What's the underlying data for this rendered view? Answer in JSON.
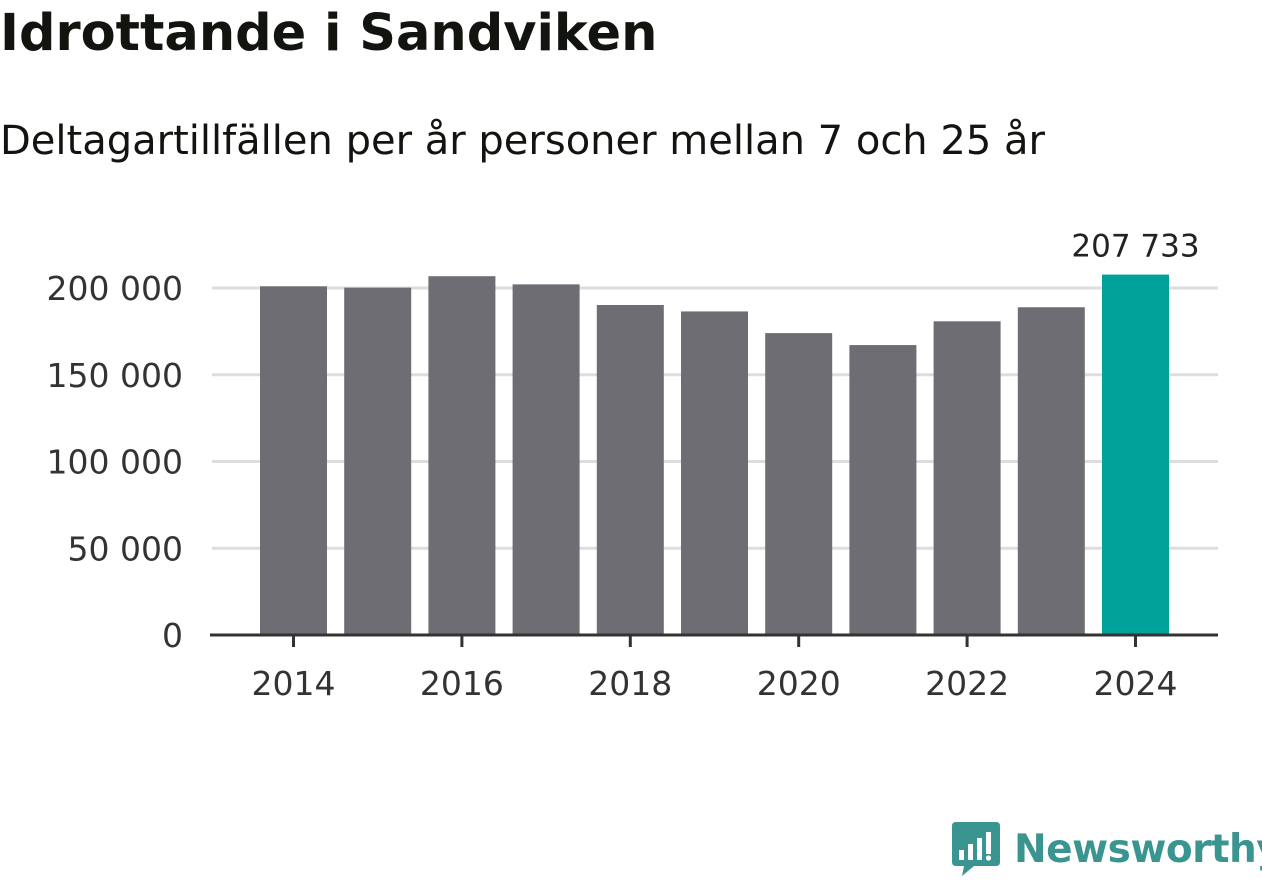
{
  "header": {
    "title": "Idrottande i Sandviken",
    "subtitle": "Deltagartillfällen per år personer mellan 7 och 25 år"
  },
  "brand": {
    "name": "Newsworthy",
    "color": "#3a9590"
  },
  "colors": {
    "bar": "#6e6d73",
    "highlight": "#00a29a",
    "grid": "#dddddd",
    "axis": "#333333",
    "text": "#333333"
  },
  "chart_data": {
    "type": "bar",
    "title": "Idrottande i Sandviken",
    "subtitle": "Deltagartillfällen per år personer mellan 7 och 25 år",
    "xlabel": "",
    "ylabel": "",
    "categories": [
      "2014",
      "2015",
      "2016",
      "2017",
      "2018",
      "2019",
      "2020",
      "2021",
      "2022",
      "2023",
      "2024"
    ],
    "values": [
      201000,
      200200,
      206800,
      202100,
      190200,
      186500,
      174000,
      167100,
      180800,
      188900,
      207733
    ],
    "highlight_index": 10,
    "value_labels": [
      {
        "index": 10,
        "text": "207 733"
      }
    ],
    "x_tick_labels": [
      {
        "index": 0,
        "text": "2014"
      },
      {
        "index": 2,
        "text": "2016"
      },
      {
        "index": 4,
        "text": "2018"
      },
      {
        "index": 6,
        "text": "2020"
      },
      {
        "index": 8,
        "text": "2022"
      },
      {
        "index": 10,
        "text": "2024"
      }
    ],
    "y_ticks": [
      {
        "value": 0,
        "label": "0"
      },
      {
        "value": 50000,
        "label": "50 000"
      },
      {
        "value": 100000,
        "label": "100 000"
      },
      {
        "value": 150000,
        "label": "150 000"
      },
      {
        "value": 200000,
        "label": "200 000"
      }
    ],
    "ylim": [
      0,
      200000
    ],
    "grid": true,
    "legend": "none"
  }
}
